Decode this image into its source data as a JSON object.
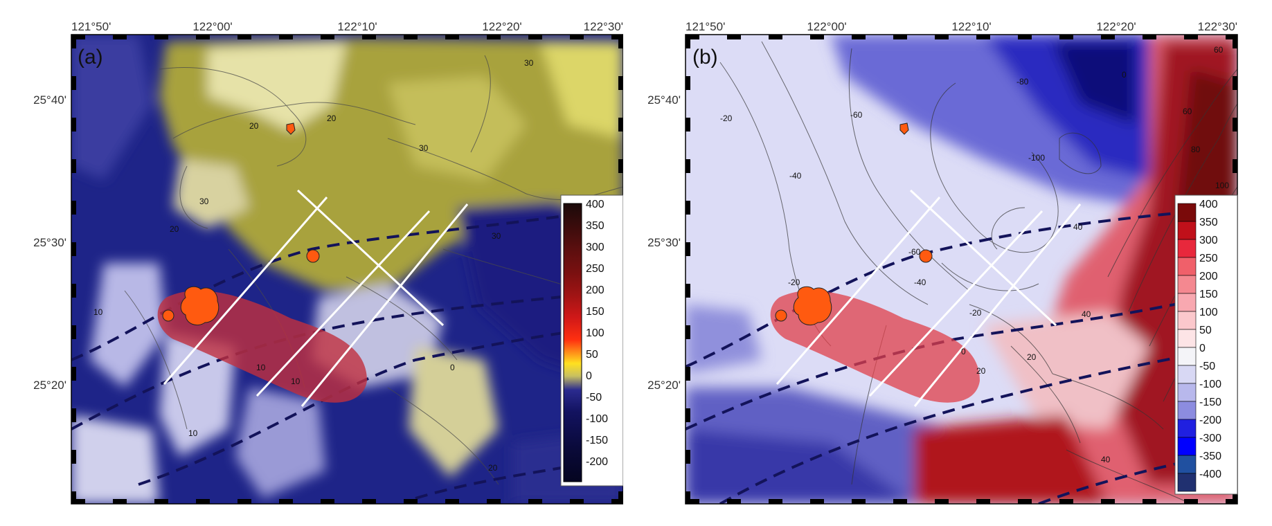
{
  "lon_labels": [
    "121°50'",
    "122°00'",
    "122°10'",
    "122°20'",
    "122°30'"
  ],
  "lat_labels": [
    "25°40'",
    "25°30'",
    "25°20'"
  ],
  "panels": [
    {
      "label": "(a)",
      "colorbar_title": "",
      "colorbar": {
        "ticks": [
          "400",
          "350",
          "300",
          "250",
          "200",
          "150",
          "100",
          "50",
          "0",
          "-50",
          "-100",
          "-150",
          "-200"
        ],
        "colors": [
          "#1a0a0a",
          "#3a0c0c",
          "#5a0f0f",
          "#7a1010",
          "#a01414",
          "#d01818",
          "#ff3010",
          "#ffe020",
          "#c8c060",
          "#2b2b8f",
          "#12125f",
          "#0a0a3a",
          "#050520"
        ]
      },
      "contour_labels": [
        "20",
        "20",
        "20",
        "30",
        "30",
        "30",
        "30",
        "10",
        "10",
        "10",
        "10",
        "0",
        "20"
      ]
    },
    {
      "label": "(b)",
      "colorbar_title": "",
      "colorbar": {
        "ticks": [
          "400",
          "350",
          "300",
          "250",
          "200",
          "150",
          "100",
          "50",
          "0",
          "-50",
          "-100",
          "-150",
          "-200",
          "-300",
          "-350",
          "-400"
        ],
        "colors": [
          "#7a0a0a",
          "#c0101a",
          "#e8283c",
          "#f0606a",
          "#f48890",
          "#f8a8b0",
          "#fbc8cc",
          "#fde4e6",
          "#f4f4f8",
          "#d8d8f4",
          "#b8b8ec",
          "#8c8ce0",
          "#2020e0",
          "#0000ff",
          "#2050a0",
          "#203070"
        ]
      },
      "contour_labels": [
        "-20",
        "-40",
        "-60",
        "-80",
        "-100",
        "-60",
        "-40",
        "-20",
        "-20",
        "0",
        "20",
        "40",
        "60",
        "80",
        "100",
        "40",
        "40",
        "20",
        "0",
        "60"
      ]
    }
  ],
  "colors": {
    "magnetic_negative": "#1a237e",
    "magnetic_positive": "#c8c060",
    "gravity_negative": "#3f3fc8",
    "gravity_positive": "#b0141e",
    "volcanic_zone": "#c0303f",
    "volcano": "#ff5a10",
    "profile_line": "#ffffff",
    "fault_trace": "#13135a"
  }
}
